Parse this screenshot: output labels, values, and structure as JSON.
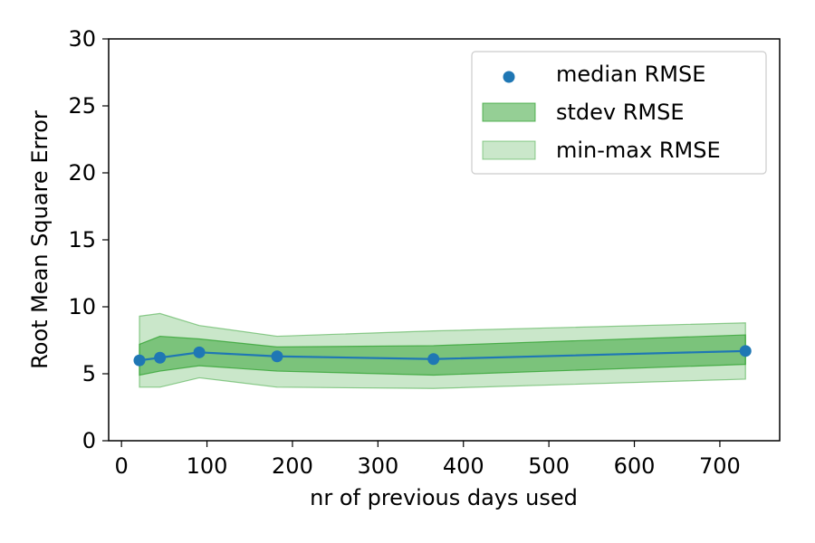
{
  "chart_data": {
    "type": "line",
    "title": "",
    "xlabel": "nr of previous days used",
    "ylabel": "Root Mean Square Error",
    "xlim": [
      -15,
      770
    ],
    "ylim": [
      0,
      30
    ],
    "xticks": [
      0,
      100,
      200,
      300,
      400,
      500,
      600,
      700
    ],
    "yticks": [
      0,
      5,
      10,
      15,
      20,
      25,
      30
    ],
    "grid": false,
    "legend_position": "top-right",
    "x": [
      21,
      45,
      91,
      182,
      365,
      730
    ],
    "series": [
      {
        "name": "median RMSE",
        "kind": "line-with-markers",
        "color": "#1f77b4",
        "values": [
          6.0,
          6.2,
          6.6,
          6.3,
          6.1,
          6.7
        ]
      },
      {
        "name": "stdev RMSE",
        "kind": "band",
        "color": "#2ca02c",
        "opacity": 0.5,
        "lower": [
          4.9,
          5.2,
          5.6,
          5.2,
          4.9,
          5.7
        ],
        "upper": [
          7.2,
          7.8,
          7.6,
          7.0,
          7.1,
          7.9
        ]
      },
      {
        "name": "min-max RMSE",
        "kind": "band",
        "color": "#2ca02c",
        "opacity": 0.25,
        "lower": [
          4.0,
          4.0,
          4.7,
          4.0,
          3.9,
          4.6
        ],
        "upper": [
          9.3,
          9.5,
          8.6,
          7.8,
          8.2,
          8.8
        ]
      }
    ],
    "legend": [
      "median RMSE",
      "stdev RMSE",
      "min-max RMSE"
    ]
  }
}
